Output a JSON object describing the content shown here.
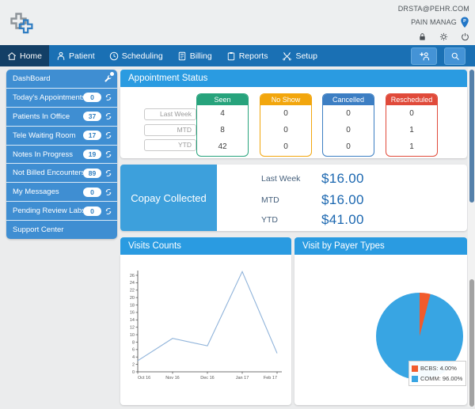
{
  "topbar": {
    "user_email": "DRSTA@PEHR.COM",
    "practice_name": "PAIN MANAG",
    "practice_pin_letter": "P",
    "icons": [
      "lock-icon",
      "gear-icon",
      "power-icon"
    ],
    "pin_color": "#2176c7"
  },
  "nav": {
    "items": [
      {
        "label": "Home",
        "icon": "home-icon",
        "active": true
      },
      {
        "label": "Patient",
        "icon": "patient-icon",
        "active": false
      },
      {
        "label": "Scheduling",
        "icon": "clock-icon",
        "active": false
      },
      {
        "label": "Billing",
        "icon": "billing-icon",
        "active": false
      },
      {
        "label": "Reports",
        "icon": "clipboard-icon",
        "active": false
      },
      {
        "label": "Setup",
        "icon": "tools-icon",
        "active": false
      }
    ],
    "buttons": [
      {
        "name": "add-patient",
        "icon": "add-patient-icon"
      },
      {
        "name": "search",
        "icon": "search-icon"
      }
    ],
    "bar_color": "#1a70b4",
    "active_color": "#133f66"
  },
  "sidebar": {
    "header_label": "DashBoard",
    "header_icon": "tools-icon",
    "items": [
      {
        "label": "Today's Appointments",
        "count": "0",
        "icon": "refresh-icon"
      },
      {
        "label": "Patients In Office",
        "count": "37",
        "icon": "refresh-icon"
      },
      {
        "label": "Tele Waiting Room",
        "count": "17",
        "icon": "refresh-icon"
      },
      {
        "label": "Notes In Progress",
        "count": "19",
        "icon": "refresh-icon"
      },
      {
        "label": "Not Billed Encounters",
        "count": "89",
        "icon": "refresh-icon"
      },
      {
        "label": "My Messages",
        "count": "0",
        "icon": "refresh-icon"
      },
      {
        "label": "Pending Review Labs",
        "count": "0",
        "icon": "refresh-icon"
      }
    ],
    "footer_label": "Support Center",
    "bg_color": "#3f8ed2"
  },
  "appointment_status": {
    "title": "Appointment Status",
    "row_labels": [
      "Last Week",
      "MTD",
      "YTD"
    ],
    "columns": [
      {
        "label": "Seen",
        "color": "#27a37c",
        "values": [
          "4",
          "8",
          "42"
        ]
      },
      {
        "label": "No Show",
        "color": "#f2a60d",
        "values": [
          "0",
          "0",
          "0"
        ]
      },
      {
        "label": "Cancelled",
        "color": "#3c7ec3",
        "values": [
          "0",
          "0",
          "0"
        ]
      },
      {
        "label": "Rescheduled",
        "color": "#e04a3a",
        "values": [
          "0",
          "1",
          "1"
        ]
      }
    ]
  },
  "copay": {
    "title": "Copay Collected",
    "rows": [
      {
        "label": "Last Week",
        "amount": "$16.00"
      },
      {
        "label": "MTD",
        "amount": "$16.00"
      },
      {
        "label": "YTD",
        "amount": "$41.00"
      }
    ],
    "block_color": "#3da0dc",
    "amount_color": "#1b67b0"
  },
  "chart_data": [
    {
      "type": "line",
      "title": "Visits Counts",
      "x": [
        "Oct 16",
        "Nov 16",
        "Dec 16",
        "Jan 17",
        "Feb 17"
      ],
      "values": [
        3,
        9,
        7,
        27,
        5
      ],
      "ylim": [
        0,
        26
      ],
      "ytick_step": 2,
      "grid": false,
      "line_color": "#8fb3da",
      "xlabel": "",
      "ylabel": ""
    },
    {
      "type": "pie",
      "title": "Visit by Payer Types",
      "legend_position": "bottom-right",
      "slices": [
        {
          "label": "BCBS",
          "pct": 4.0,
          "color": "#f15b2c",
          "legend": "BCBS: 4.00%"
        },
        {
          "label": "COMM",
          "pct": 96.0,
          "color": "#38a5e3",
          "legend": "COMM: 96.00%"
        }
      ]
    }
  ]
}
